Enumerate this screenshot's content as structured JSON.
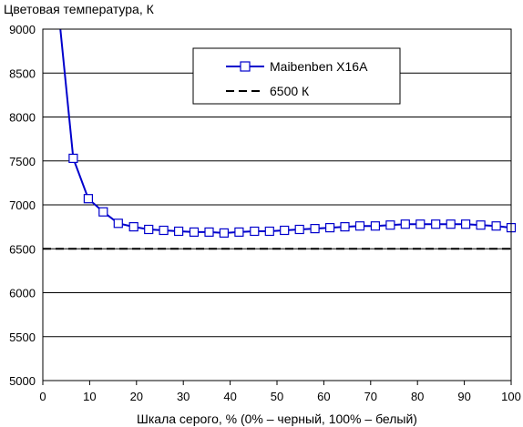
{
  "chart_data": {
    "type": "line",
    "title": "",
    "ylabel": "Цветовая температура, К",
    "xlabel": "Шкала серого, % (0% – черный, 100% – белый)",
    "xlim": [
      0,
      100
    ],
    "ylim": [
      5000,
      9000
    ],
    "xticks": [
      0,
      10,
      20,
      30,
      40,
      50,
      60,
      70,
      80,
      90,
      100
    ],
    "yticks": [
      5000,
      5500,
      6000,
      6500,
      7000,
      7500,
      8000,
      8500,
      9000
    ],
    "grid": "horizontal",
    "legend_position": "top-right",
    "series": [
      {
        "name": "Maibenben X16A",
        "color": "#0000cc",
        "marker": "square",
        "x": [
          3,
          6.5,
          9.7,
          12.9,
          16.1,
          19.4,
          22.6,
          25.8,
          29.0,
          32.3,
          35.5,
          38.7,
          41.9,
          45.2,
          48.4,
          51.6,
          54.8,
          58.1,
          61.3,
          64.5,
          67.7,
          71.0,
          74.2,
          77.4,
          80.6,
          83.9,
          87.1,
          90.3,
          93.5,
          96.8,
          100
        ],
        "y": [
          9400,
          7530,
          7070,
          6920,
          6790,
          6750,
          6720,
          6710,
          6700,
          6690,
          6690,
          6680,
          6690,
          6700,
          6700,
          6710,
          6720,
          6730,
          6740,
          6750,
          6760,
          6760,
          6770,
          6780,
          6780,
          6780,
          6780,
          6780,
          6770,
          6760,
          6740
        ],
        "markers_from_index": 1
      },
      {
        "name": "6500 К",
        "color": "#000000",
        "dash": "dashed",
        "x": [
          0,
          100
        ],
        "y": [
          6500,
          6500
        ]
      }
    ]
  }
}
